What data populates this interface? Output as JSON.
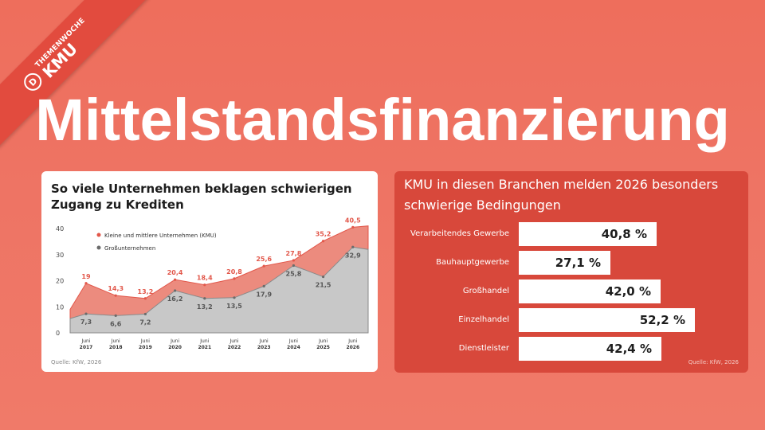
{
  "badge": {
    "small": "THEMENWOCHE",
    "big": "KMU",
    "logo": "D"
  },
  "title": "Mittelstandsfinanzierung",
  "chart_data": [
    {
      "type": "area",
      "title": "So viele Unternehmen beklagen schwierigen Zugang zu Krediten",
      "source": "Quelle: KfW, 2026",
      "ylim": [
        0,
        40
      ],
      "yticks": [
        0,
        10,
        20,
        30,
        40
      ],
      "x_label_top": [
        "Juni",
        "Juni",
        "Juni",
        "Juni",
        "Juni",
        "Juni",
        "Juni",
        "Juni",
        "Juni",
        "Juni"
      ],
      "categories": [
        "2017",
        "2018",
        "2019",
        "2020",
        "2021",
        "2022",
        "2023",
        "2024",
        "2025",
        "2026"
      ],
      "series": [
        {
          "name": "Kleine und mittlere Unternehmen (KMU)",
          "color": "#e2574a",
          "values": [
            19,
            14.3,
            13.2,
            20.4,
            18.4,
            20.8,
            25.6,
            27.8,
            35.2,
            40.5
          ],
          "labels": [
            "19",
            "14,3",
            "13,2",
            "20,4",
            "18,4",
            "20,8",
            "25,6",
            "27,8",
            "35,2",
            "40,5"
          ]
        },
        {
          "name": "Großunternehmen",
          "color": "#6b6b6b",
          "values": [
            7.3,
            6.6,
            7.2,
            16.2,
            13.2,
            13.5,
            17.9,
            25.8,
            21.5,
            32.9
          ],
          "labels": [
            "7,3",
            "6,6",
            "7,2",
            "16,2",
            "13,2",
            "13,5",
            "17,9",
            "25,8",
            "21,5",
            "32,9"
          ]
        }
      ],
      "legend_position": "top-left",
      "grid": false
    },
    {
      "type": "bar",
      "orientation": "horizontal",
      "title": "KMU in diesen Branchen melden 2026 besonders schwierige Bedingungen",
      "source": "Quelle: KfW, 2026",
      "categories": [
        "Verarbeitendes Gewerbe",
        "Bauhauptgewerbe",
        "Großhandel",
        "Einzelhandel",
        "Dienstleister"
      ],
      "values": [
        40.8,
        27.1,
        42.0,
        52.2,
        42.4
      ],
      "labels": [
        "40,8 %",
        "27,1 %",
        "42,0 %",
        "52,2 %",
        "42,4 %"
      ]
    }
  ]
}
